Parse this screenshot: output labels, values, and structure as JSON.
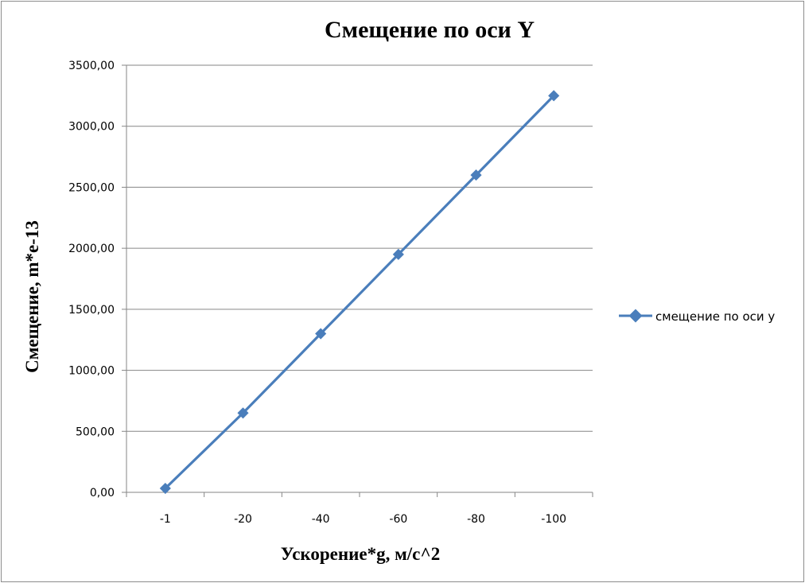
{
  "chart_data": {
    "type": "line",
    "title": "Смещение по оси Y",
    "xlabel": "Ускорение*g, м/с^2",
    "ylabel": "Смещение, m*e-13",
    "categories": [
      "-1",
      "-20",
      "-40",
      "-60",
      "-80",
      "-100"
    ],
    "series": [
      {
        "name": "смещение по оси у",
        "values": [
          32.5,
          650,
          1300,
          1950,
          2600,
          3250
        ],
        "color": "#4a7ebb"
      }
    ],
    "y_ticks": [
      "0,00",
      "500,00",
      "1000,00",
      "1500,00",
      "2000,00",
      "2500,00",
      "3000,00",
      "3500,00"
    ],
    "ylim": [
      0,
      3500
    ],
    "y_step": 500,
    "grid": "horizontal",
    "legend_position": "right",
    "marker": "diamond"
  }
}
